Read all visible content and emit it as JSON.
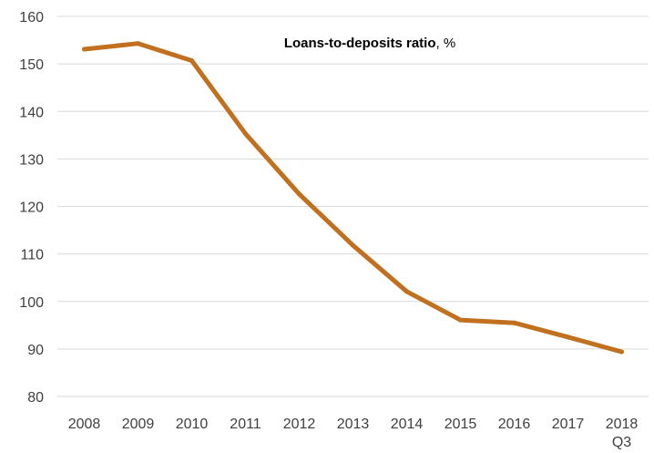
{
  "chart_data": {
    "type": "line",
    "title": "Loans-to-deposits ratio",
    "title_unit": ", %",
    "xlabel": "",
    "ylabel": "",
    "categories": [
      "2008",
      "2009",
      "2010",
      "2011",
      "2012",
      "2013",
      "2014",
      "2015",
      "2016",
      "2017",
      "2018 Q3"
    ],
    "category_labels": [
      [
        "2008"
      ],
      [
        "2009"
      ],
      [
        "2010"
      ],
      [
        "2011"
      ],
      [
        "2012"
      ],
      [
        "2013"
      ],
      [
        "2014"
      ],
      [
        "2015"
      ],
      [
        "2016"
      ],
      [
        "2017"
      ],
      [
        "2018",
        "Q3"
      ]
    ],
    "series": [
      {
        "values": [
          153.1,
          154.3,
          150.7,
          135.3,
          122.6,
          111.8,
          102.1,
          96.1,
          95.5,
          92.5,
          89.4
        ]
      }
    ],
    "ylim": [
      80,
      160
    ],
    "yticks": [
      80,
      90,
      100,
      110,
      120,
      130,
      140,
      150,
      160
    ],
    "grid": true,
    "legend": "none",
    "colors": {
      "line": "#C0701E",
      "grid": "#D9D9D9",
      "text": "#404040"
    }
  }
}
